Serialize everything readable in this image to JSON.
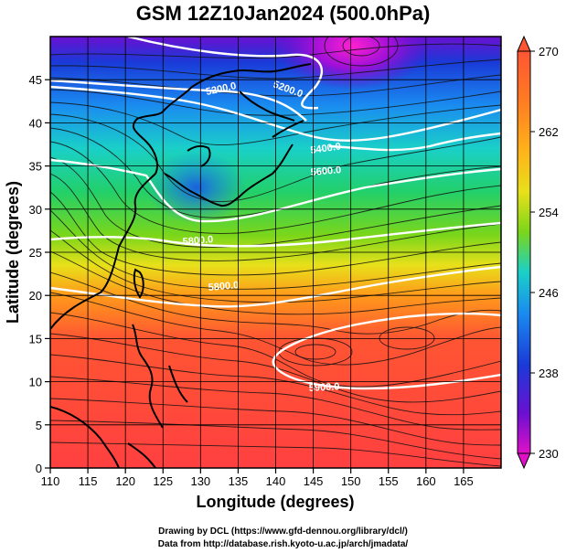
{
  "title": "GSM 12Z10Jan2024 (500.0hPa)",
  "xaxis": {
    "label": "Longitude (degrees)",
    "range": [
      110,
      170
    ],
    "ticks": [
      110,
      115,
      120,
      125,
      130,
      135,
      140,
      145,
      150,
      155,
      160,
      165
    ]
  },
  "yaxis": {
    "label": "Latitude  (degrees)",
    "range": [
      0,
      50
    ],
    "ticks": [
      0,
      5,
      10,
      15,
      20,
      25,
      30,
      35,
      40,
      45
    ]
  },
  "colorbar": {
    "min": 230,
    "max": 270,
    "tick_labels": [
      "270",
      "262",
      "254",
      "246",
      "238",
      "230"
    ],
    "colors": [
      "#ff5533",
      "#ff9a1a",
      "#f5e01a",
      "#7ad61a",
      "#22d06a",
      "#1ad0c8",
      "#1a8cf0",
      "#1a3ad8",
      "#6a10d0",
      "#e010c8"
    ]
  },
  "contours": {
    "labels": [
      "5200.0",
      "5200.0",
      "5400.0",
      "5600.0",
      "5800.0",
      "5800.0",
      "5900.0"
    ]
  },
  "credits": [
    "Drawing by DCL (https://www.gfd-dennou.org/library/dcl/)",
    "Data from http://database.rish.kyoto-u.ac.jp/arch/jmadata/"
  ],
  "chart_data": {
    "type": "heatmap",
    "title": "GSM 12Z10Jan2024 (500.0hPa)",
    "xlabel": "Longitude (degrees)",
    "ylabel": "Latitude  (degrees)",
    "xlim": [
      110,
      170
    ],
    "ylim": [
      0,
      50
    ],
    "color_range": [
      230,
      270
    ],
    "grid": true,
    "legend": "colorbar-right",
    "overlays": [
      "geopotential-height-contours",
      "wind-streamlines",
      "coastlines"
    ]
  }
}
